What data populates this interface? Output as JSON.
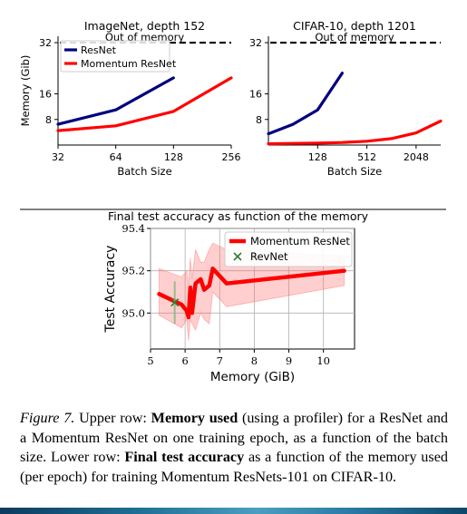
{
  "figure": {
    "caption": {
      "label": "Figure 7.",
      "t1": " Upper row: ",
      "b1": "Memory used",
      "t2": " (using a profiler) for a ResNet and a Momentum ResNet on one training epoch, as a function of the batch size. Lower row: ",
      "b2": "Final test accuracy",
      "t3": " as a function of the memory used (per epoch) for training Momentum ResNets-101 on CIFAR-10."
    }
  },
  "chart_data": [
    {
      "type": "line",
      "title": "ImageNet, depth 152",
      "xlabel": "Batch Size",
      "ylabel": "Memory (Gib)",
      "x_scale": "log2",
      "x_ticks": [
        "32",
        "64",
        "128",
        "256"
      ],
      "y_ticks": [
        "8",
        "16",
        "32"
      ],
      "xlim": [
        32,
        256
      ],
      "ylim": [
        0,
        34
      ],
      "annotation": "Out of memory",
      "threshold": 32,
      "legend": "upper-left",
      "series": [
        {
          "name": "ResNet",
          "color": "#00007f",
          "x": [
            32,
            64,
            128
          ],
          "y": [
            6.5,
            11,
            21
          ]
        },
        {
          "name": "Momentum ResNet",
          "color": "#ff0000",
          "x": [
            32,
            64,
            128,
            256
          ],
          "y": [
            4.5,
            6,
            10.5,
            21
          ]
        }
      ]
    },
    {
      "type": "line",
      "title": "CIFAR-10, depth 1201",
      "xlabel": "Batch Size",
      "ylabel": "",
      "x_scale": "log2",
      "x_ticks": [
        "128",
        "512",
        "2048"
      ],
      "y_ticks": [
        "8",
        "16",
        "32"
      ],
      "xlim": [
        32,
        4096
      ],
      "ylim": [
        0,
        34
      ],
      "annotation": "Out of memory",
      "threshold": 32,
      "series": [
        {
          "color": "#00007f",
          "x": [
            32,
            64,
            128,
            256
          ],
          "y": [
            3.5,
            6.5,
            11,
            22.5
          ]
        },
        {
          "color": "#ff0000",
          "x": [
            32,
            64,
            128,
            256,
            512,
            1024,
            2048,
            4096
          ],
          "y": [
            0.4,
            0.5,
            0.6,
            0.8,
            1.2,
            2,
            3.8,
            7.5
          ]
        }
      ]
    },
    {
      "type": "line",
      "title": "Final test accuracy as function of the memory",
      "xlabel": "Memory (GiB)",
      "ylabel": "Test Accuracy",
      "x_ticks": [
        "5",
        "6",
        "7",
        "8",
        "9",
        "10"
      ],
      "y_ticks": [
        "95.0",
        "95.2",
        "95.4"
      ],
      "xlim": [
        5,
        10.9
      ],
      "ylim": [
        94.83,
        95.4
      ],
      "legend": "upper-right",
      "series": [
        {
          "name": "Momentum ResNet",
          "color": "#ff0000",
          "x": [
            5.25,
            5.9,
            6.05,
            6.1,
            6.15,
            6.2,
            6.3,
            6.45,
            6.55,
            6.7,
            6.8,
            7.2,
            10.6
          ],
          "y": [
            95.09,
            95.04,
            95.01,
            94.98,
            95.12,
            95.0,
            95.14,
            95.16,
            95.11,
            95.13,
            95.21,
            95.14,
            95.2
          ],
          "band_upper": [
            95.21,
            95.17,
            95.2,
            95.12,
            95.26,
            95.16,
            95.3,
            95.24,
            95.24,
            95.3,
            95.33,
            95.3,
            95.27
          ],
          "band_lower": [
            94.99,
            94.93,
            94.97,
            94.87,
            94.97,
            94.95,
            94.92,
            95.0,
            94.97,
            94.95,
            95.1,
            95.03,
            95.13
          ]
        },
        {
          "name": "RevNet",
          "color": "#2e7d32",
          "marker": "x",
          "x": [
            5.7
          ],
          "y": [
            95.05
          ],
          "err": [
            0.1
          ]
        }
      ]
    }
  ]
}
